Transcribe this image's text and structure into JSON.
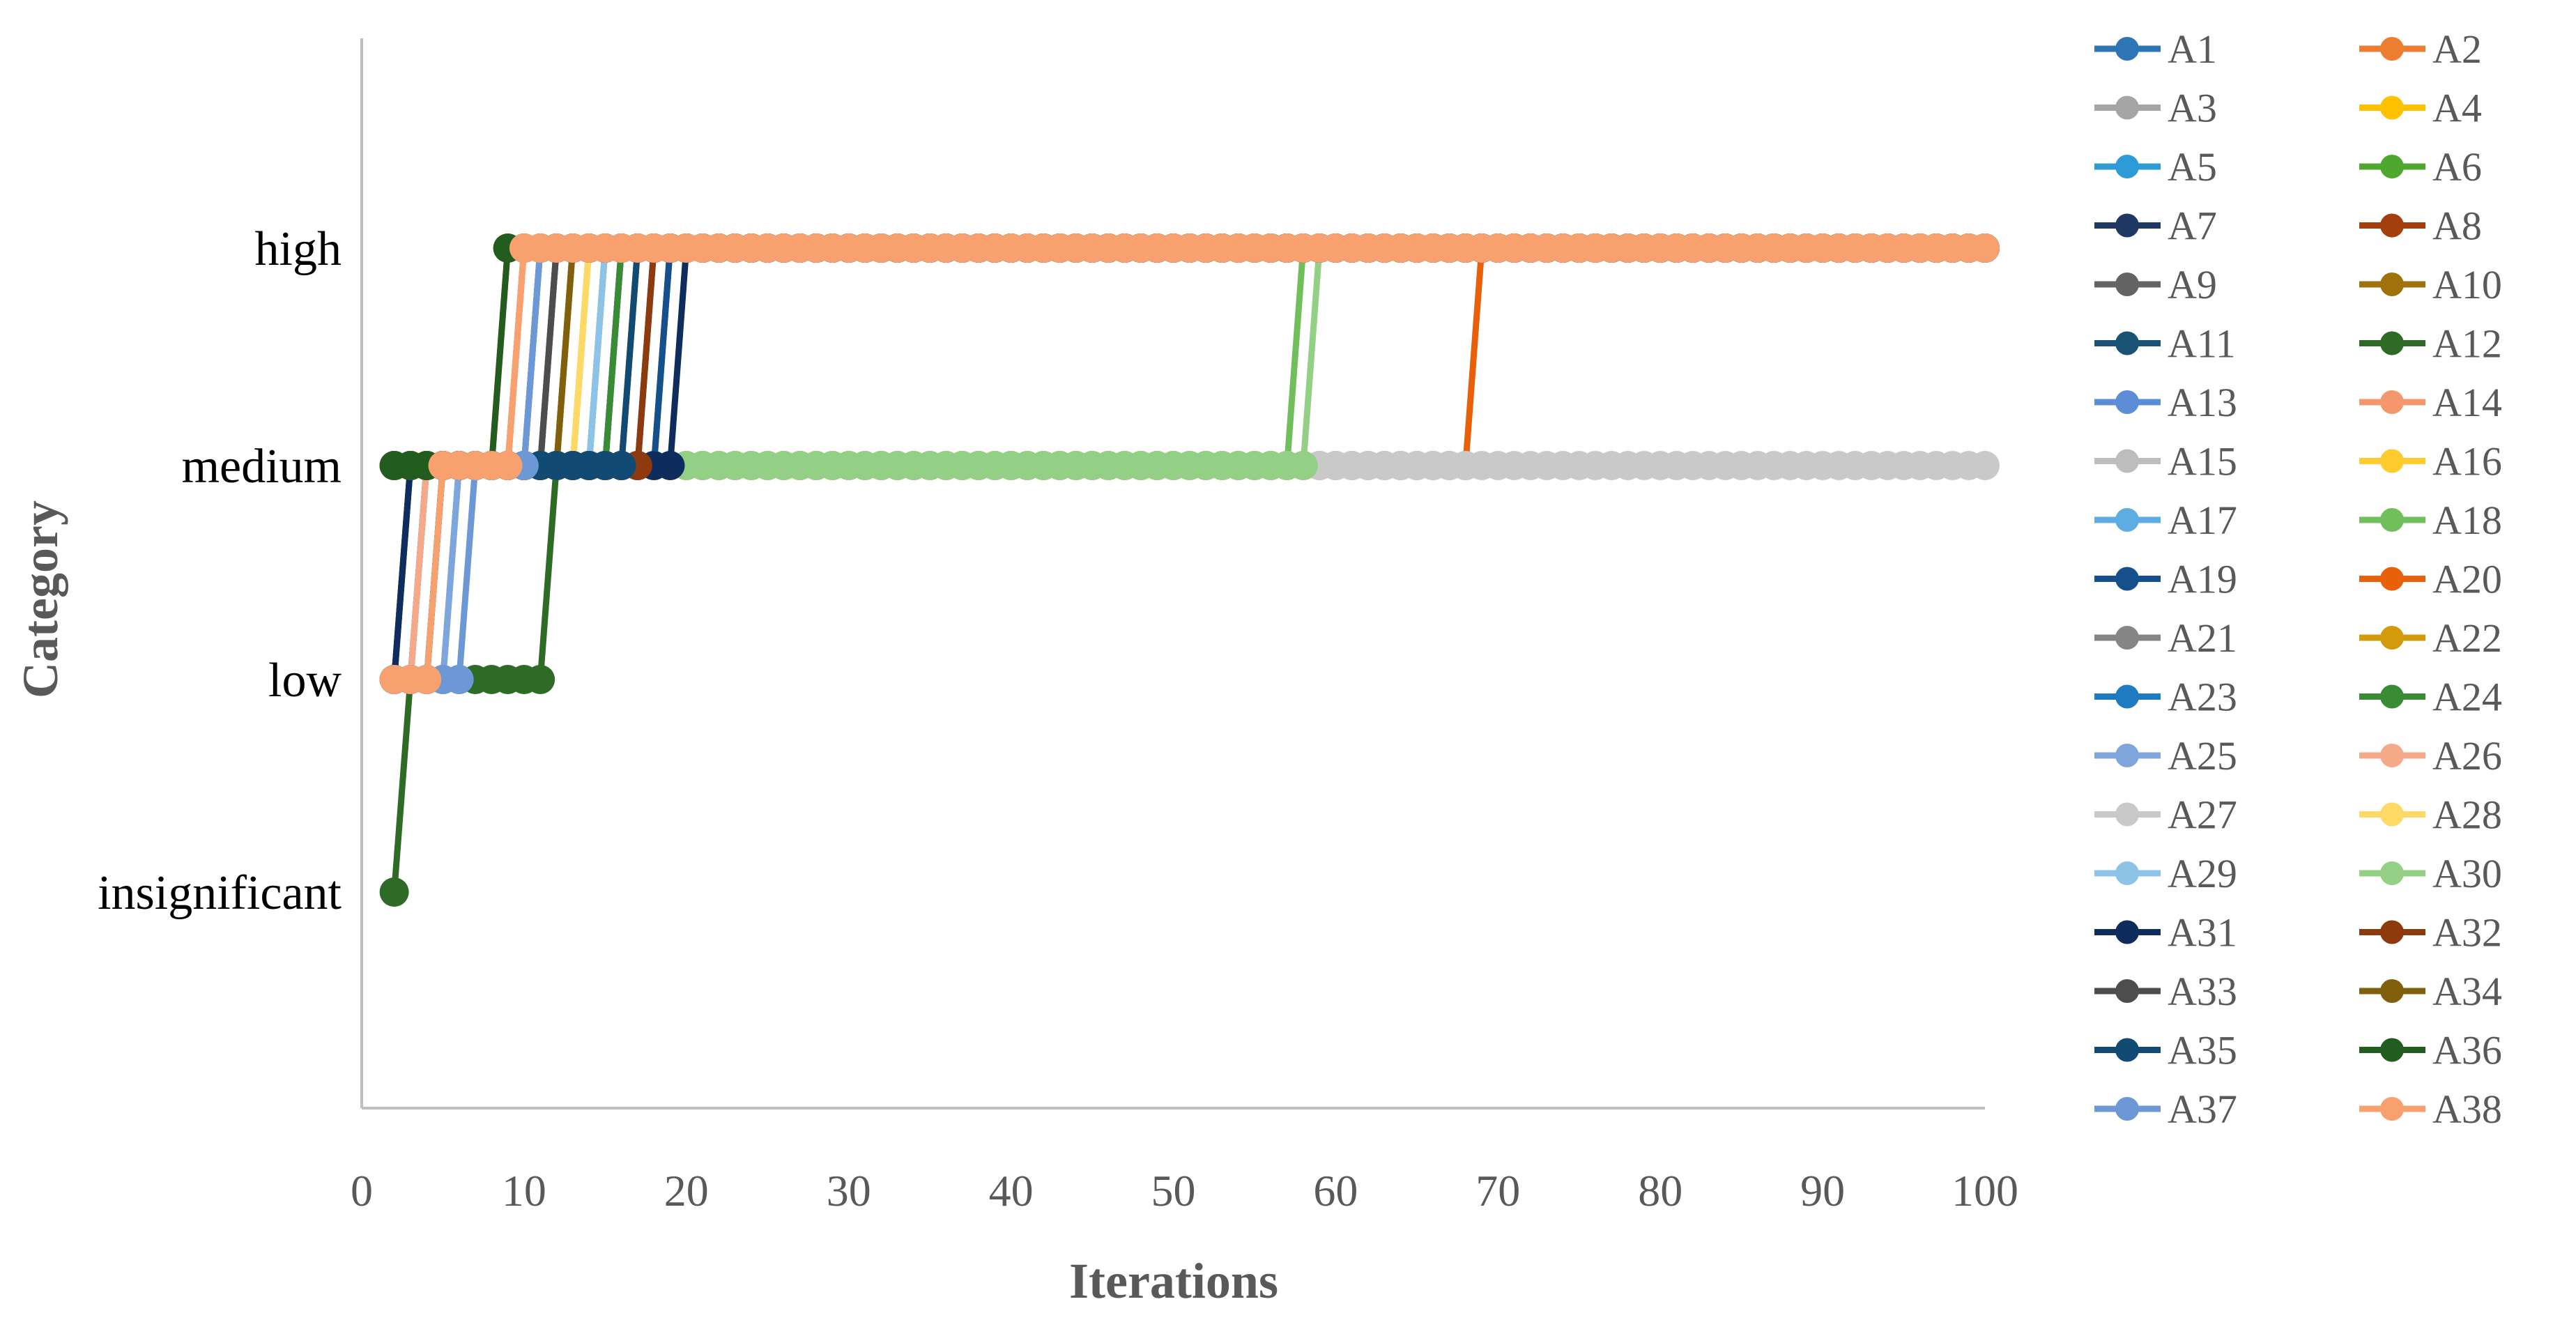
{
  "chart_data": {
    "type": "line",
    "xlabel": "Iterations",
    "ylabel": "Category",
    "xlim": [
      0,
      100
    ],
    "x_ticks": [
      0,
      10,
      20,
      30,
      40,
      50,
      60,
      70,
      80,
      90,
      100
    ],
    "y_categories": [
      "insignificant",
      "low",
      "medium",
      "high"
    ],
    "grid": false,
    "legend_position": "right",
    "series": [
      {
        "name": "A1",
        "color": "#2E75B6",
        "steps": [
          [
            2,
            1
          ],
          [
            3,
            2
          ],
          [
            10,
            3
          ]
        ]
      },
      {
        "name": "A2",
        "color": "#ED7D31",
        "steps": [
          [
            2,
            2
          ],
          [
            9,
            3
          ]
        ]
      },
      {
        "name": "A3",
        "color": "#A5A5A5",
        "steps": [
          [
            2,
            2
          ],
          [
            10,
            3
          ]
        ]
      },
      {
        "name": "A4",
        "color": "#FFC000",
        "steps": [
          [
            2,
            2
          ],
          [
            14,
            3
          ]
        ]
      },
      {
        "name": "A5",
        "color": "#2E9BD6",
        "steps": [
          [
            2,
            1
          ],
          [
            4,
            2
          ],
          [
            11,
            3
          ]
        ]
      },
      {
        "name": "A6",
        "color": "#4EA72E",
        "steps": [
          [
            2,
            2
          ],
          [
            15,
            3
          ]
        ]
      },
      {
        "name": "A7",
        "color": "#1F3864",
        "steps": [
          [
            2,
            1
          ],
          [
            3,
            2
          ],
          [
            16,
            3
          ]
        ]
      },
      {
        "name": "A8",
        "color": "#A33F0C",
        "steps": [
          [
            2,
            2
          ],
          [
            17,
            3
          ]
        ]
      },
      {
        "name": "A9",
        "color": "#636363",
        "steps": [
          [
            2,
            2
          ],
          [
            12,
            3
          ]
        ]
      },
      {
        "name": "A10",
        "color": "#A0720C",
        "steps": [
          [
            2,
            2
          ],
          [
            13,
            3
          ]
        ]
      },
      {
        "name": "A11",
        "color": "#1A5276",
        "steps": [
          [
            2,
            1
          ],
          [
            5,
            2
          ],
          [
            18,
            3
          ]
        ]
      },
      {
        "name": "A12",
        "color": "#2E6B26",
        "steps": [
          [
            2,
            0
          ],
          [
            3,
            1
          ],
          [
            11,
            1
          ],
          [
            12,
            2
          ],
          [
            19,
            3
          ]
        ]
      },
      {
        "name": "A13",
        "color": "#5B8ED6",
        "steps": [
          [
            2,
            1
          ],
          [
            6,
            2
          ],
          [
            11,
            3
          ]
        ]
      },
      {
        "name": "A14",
        "color": "#F4976C",
        "steps": [
          [
            2,
            2
          ],
          [
            10,
            3
          ]
        ]
      },
      {
        "name": "A15",
        "color": "#BDBDBD",
        "steps": [
          [
            2,
            2
          ],
          [
            14,
            3
          ]
        ]
      },
      {
        "name": "A16",
        "color": "#FFCB2E",
        "steps": [
          [
            2,
            2
          ],
          [
            14,
            3
          ]
        ]
      },
      {
        "name": "A17",
        "color": "#5DADE2",
        "steps": [
          [
            2,
            2
          ],
          [
            15,
            3
          ]
        ]
      },
      {
        "name": "A18",
        "color": "#70BF5C",
        "steps": [
          [
            2,
            2
          ],
          [
            57,
            2
          ],
          [
            58,
            3
          ]
        ]
      },
      {
        "name": "A19",
        "color": "#154F8C",
        "steps": [
          [
            2,
            2
          ],
          [
            19,
            3
          ]
        ]
      },
      {
        "name": "A20",
        "color": "#E8600A",
        "steps": [
          [
            2,
            2
          ],
          [
            68,
            2
          ],
          [
            69,
            3
          ]
        ]
      },
      {
        "name": "A21",
        "color": "#858585",
        "steps": [
          [
            2,
            2
          ],
          [
            12,
            3
          ]
        ]
      },
      {
        "name": "A22",
        "color": "#D39A0C",
        "steps": [
          [
            2,
            2
          ],
          [
            13,
            3
          ]
        ]
      },
      {
        "name": "A23",
        "color": "#1F7BC1",
        "steps": [
          [
            2,
            1
          ],
          [
            4,
            2
          ],
          [
            16,
            3
          ]
        ]
      },
      {
        "name": "A24",
        "color": "#3A8C34",
        "steps": [
          [
            2,
            2
          ],
          [
            16,
            3
          ]
        ]
      },
      {
        "name": "A25",
        "color": "#7EA6DC",
        "steps": [
          [
            2,
            1
          ],
          [
            6,
            2
          ],
          [
            11,
            3
          ]
        ]
      },
      {
        "name": "A26",
        "color": "#F6A988",
        "steps": [
          [
            2,
            1
          ],
          [
            4,
            2
          ],
          [
            10,
            3
          ]
        ]
      },
      {
        "name": "A27",
        "color": "#C9C9C9",
        "steps": [
          [
            2,
            2
          ],
          [
            100,
            2
          ]
        ]
      },
      {
        "name": "A28",
        "color": "#FFD966",
        "steps": [
          [
            2,
            2
          ],
          [
            14,
            3
          ]
        ]
      },
      {
        "name": "A29",
        "color": "#8EC3E8",
        "steps": [
          [
            2,
            2
          ],
          [
            15,
            3
          ]
        ]
      },
      {
        "name": "A30",
        "color": "#93CF84",
        "steps": [
          [
            2,
            2
          ],
          [
            58,
            2
          ],
          [
            59,
            3
          ]
        ]
      },
      {
        "name": "A31",
        "color": "#0F2D5C",
        "steps": [
          [
            2,
            1
          ],
          [
            3,
            2
          ],
          [
            20,
            3
          ]
        ]
      },
      {
        "name": "A32",
        "color": "#8C3A0E",
        "steps": [
          [
            2,
            2
          ],
          [
            18,
            3
          ]
        ]
      },
      {
        "name": "A33",
        "color": "#4D4D4D",
        "steps": [
          [
            2,
            2
          ],
          [
            12,
            3
          ]
        ]
      },
      {
        "name": "A34",
        "color": "#80600C",
        "steps": [
          [
            2,
            2
          ],
          [
            13,
            3
          ]
        ]
      },
      {
        "name": "A35",
        "color": "#114A73",
        "steps": [
          [
            2,
            1
          ],
          [
            5,
            2
          ],
          [
            17,
            3
          ]
        ]
      },
      {
        "name": "A36",
        "color": "#225C1F",
        "steps": [
          [
            2,
            2
          ],
          [
            8,
            2
          ],
          [
            9,
            3
          ]
        ]
      },
      {
        "name": "A37",
        "color": "#6C98D6",
        "steps": [
          [
            2,
            1
          ],
          [
            7,
            2
          ],
          [
            11,
            3
          ]
        ]
      },
      {
        "name": "A38",
        "color": "#F9A06F",
        "steps": [
          [
            2,
            1
          ],
          [
            5,
            2
          ],
          [
            10,
            3
          ],
          [
            100,
            3
          ]
        ]
      }
    ]
  }
}
